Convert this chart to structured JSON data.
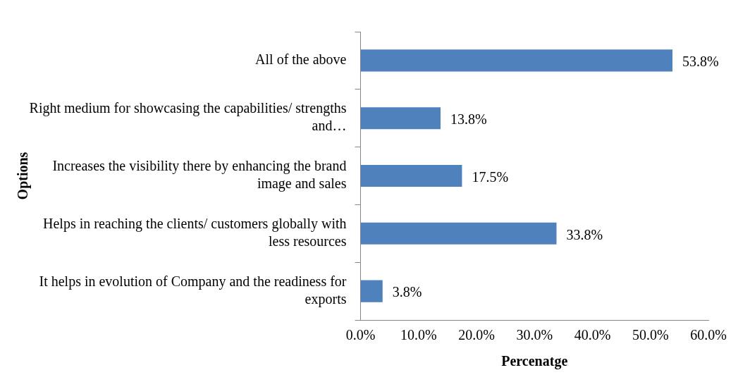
{
  "chart_data": {
    "type": "bar",
    "orientation": "horizontal",
    "xlabel": "Percenatge",
    "ylabel": "Options",
    "categories": [
      "All of the above",
      "Right medium for showcasing the capabilities/ strengths and…",
      "Increases the visibility there by enhancing the brand image and sales",
      "Helps in reaching the clients/ customers globally with less resources",
      "It helps in evolution of Company and the readiness for exports"
    ],
    "values": [
      53.8,
      13.8,
      17.5,
      33.8,
      3.8
    ],
    "value_labels": [
      "53.8%",
      "13.8%",
      "17.5%",
      "33.8%",
      "3.8%"
    ],
    "color": "#4f81bd",
    "xlim": [
      0,
      60
    ],
    "xticks": [
      {
        "value": 0,
        "label": "0.0%"
      },
      {
        "value": 10,
        "label": "10.0%"
      },
      {
        "value": 20,
        "label": "20.0%"
      },
      {
        "value": 30,
        "label": "30.0%"
      },
      {
        "value": 40,
        "label": "40.0%"
      },
      {
        "value": 50,
        "label": "50.0%"
      },
      {
        "value": 60,
        "label": "60.0%"
      }
    ],
    "grid": false,
    "legend": false
  }
}
